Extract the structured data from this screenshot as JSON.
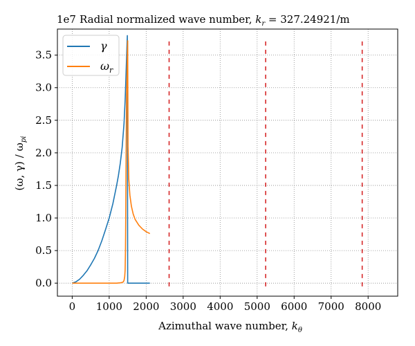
{
  "chart_data": {
    "type": "line",
    "title_prefix": "Radial normalized wave number, ",
    "title_math_base": "k",
    "title_math_sub": "r",
    "title_math_rest": " = 327.24921/m",
    "xlabel_text": "Azimuthal wave number, ",
    "xlabel_math_base": "k",
    "xlabel_math_sub": "θ",
    "ylabel_parts": [
      "(ω, γ) / ω",
      "pi"
    ],
    "offset_text": "1e7",
    "xlim": [
      -400,
      8800
    ],
    "ylim": [
      -0.2,
      3.9
    ],
    "xticks": [
      0,
      1000,
      2000,
      3000,
      4000,
      5000,
      6000,
      7000,
      8000
    ],
    "xtick_labels": [
      "0",
      "1000",
      "2000",
      "3000",
      "4000",
      "5000",
      "6000",
      "7000",
      "8000"
    ],
    "yticks": [
      0.0,
      0.5,
      1.0,
      1.5,
      2.0,
      2.5,
      3.0,
      3.5
    ],
    "ytick_labels": [
      "0.0",
      "0.5",
      "1.0",
      "1.5",
      "2.0",
      "2.5",
      "3.0",
      "3.5"
    ],
    "grid": true,
    "legend_position": "top-left",
    "series": [
      {
        "name_base": "γ",
        "name_sub": "",
        "color": "#1f77b4",
        "x": [
          0,
          100,
          200,
          300,
          400,
          500,
          600,
          700,
          800,
          900,
          1000,
          1100,
          1200,
          1250,
          1300,
          1350,
          1400,
          1430,
          1460,
          1480,
          1490,
          1500,
          1500,
          1510,
          1520,
          1600,
          1800,
          2000,
          2100
        ],
        "y": [
          0.0,
          0.02,
          0.06,
          0.12,
          0.19,
          0.28,
          0.38,
          0.5,
          0.65,
          0.82,
          1.0,
          1.22,
          1.5,
          1.65,
          1.84,
          2.08,
          2.45,
          2.8,
          3.3,
          3.62,
          3.8,
          0.0,
          0.0,
          0.0,
          0.0,
          0.0,
          0.0,
          0.0,
          0.0
        ]
      },
      {
        "name_base": "ω",
        "name_sub": "r",
        "color": "#ff7f0e",
        "x": [
          0,
          500,
          1000,
          1200,
          1300,
          1350,
          1380,
          1400,
          1420,
          1430,
          1440,
          1450,
          1460,
          1470,
          1475,
          1480,
          1485,
          1490,
          1500,
          1510,
          1520,
          1530,
          1560,
          1600,
          1650,
          1700,
          1800,
          1900,
          2000,
          2100
        ],
        "y": [
          0.0,
          0.0,
          0.0,
          0.0,
          0.005,
          0.01,
          0.02,
          0.04,
          0.1,
          0.2,
          0.5,
          1.2,
          2.2,
          2.9,
          3.0,
          3.1,
          3.3,
          3.5,
          3.72,
          2.1,
          1.85,
          1.6,
          1.35,
          1.18,
          1.06,
          0.98,
          0.89,
          0.83,
          0.79,
          0.76
        ]
      }
    ],
    "vlines": {
      "color": "#d62728",
      "x": [
        2620,
        5230,
        7840
      ],
      "ymin": -0.05,
      "ymax": 3.75
    }
  }
}
